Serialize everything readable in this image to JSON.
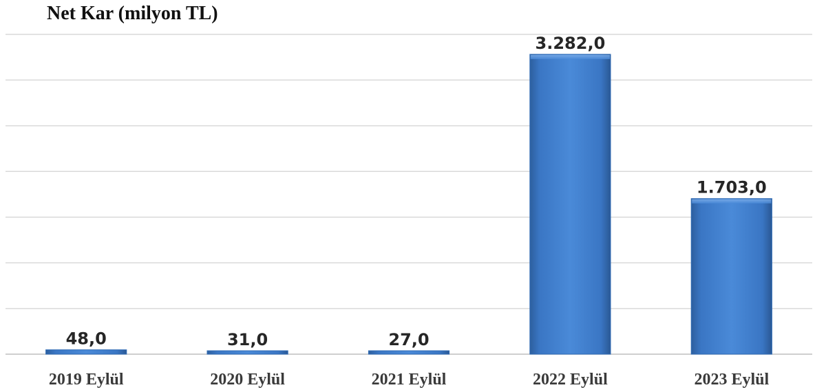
{
  "chart_data": {
    "type": "bar",
    "title": "Net Kar (milyon TL)",
    "categories": [
      "2019 Eylül",
      "2020 Eylül",
      "2021 Eylül",
      "2022 Eylül",
      "2023 Eylül"
    ],
    "values": [
      48.0,
      31.0,
      27.0,
      3282.0,
      1703.0
    ],
    "data_labels": [
      "48,0",
      "31,0",
      "27,0",
      "3.282,0",
      "1.703,0"
    ],
    "xlabel": "",
    "ylabel": "",
    "ylim": [
      0,
      3500
    ],
    "grid": true,
    "legend": "none",
    "bar_color": "#3F7FD0"
  }
}
